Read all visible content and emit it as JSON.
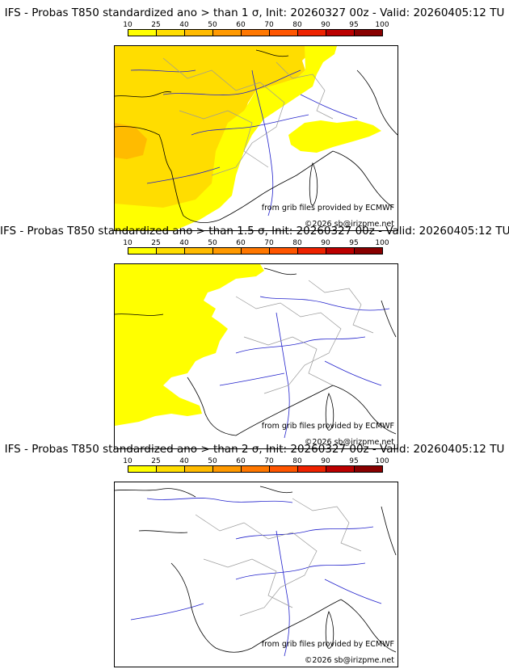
{
  "colors": {
    "c10": "#ffff00",
    "c25": "#ffdd00",
    "c40": "#ffbb00",
    "c50": "#ff9900",
    "c60": "#ff7700",
    "c70": "#ff5500",
    "c80": "#ee2200",
    "c90": "#bb0000",
    "c95": "#880000",
    "c100": "#440000",
    "coast": "#000000",
    "rivers": "#2222cc",
    "borders": "#999999"
  },
  "legend": {
    "ticks": [
      "10",
      "25",
      "40",
      "50",
      "60",
      "70",
      "80",
      "90",
      "95",
      "100"
    ],
    "bins": [
      {
        "range": "10-25",
        "color": "#ffff00"
      },
      {
        "range": "25-40",
        "color": "#ffdd00"
      },
      {
        "range": "40-50",
        "color": "#ffbb00"
      },
      {
        "range": "50-60",
        "color": "#ff9900"
      },
      {
        "range": "60-70",
        "color": "#ff7700"
      },
      {
        "range": "70-80",
        "color": "#ff5500"
      },
      {
        "range": "80-90",
        "color": "#ee2200"
      },
      {
        "range": "90-95",
        "color": "#bb0000"
      },
      {
        "range": "95-100",
        "color": "#880000"
      }
    ]
  },
  "credits": {
    "source": "from grib files provided by ECMWF",
    "copyright": "©2026 sb@irizpme.net"
  },
  "panels": [
    {
      "title": "IFS - Probas T850  standardized ano > than 1 σ, Init: 20260327 00z - Valid: 20260405:12 TU",
      "threshold": "1 σ"
    },
    {
      "title": "IFS - Probas T850  standardized ano > than 1.5 σ, Init: 20260327 00z - Valid: 20260405:12 TU",
      "threshold": "1.5 σ"
    },
    {
      "title": "IFS - Probas T850  standardized ano > than 2 σ, Init: 20260327 00z - Valid: 20260405:12 TU",
      "threshold": "2 σ"
    }
  ]
}
